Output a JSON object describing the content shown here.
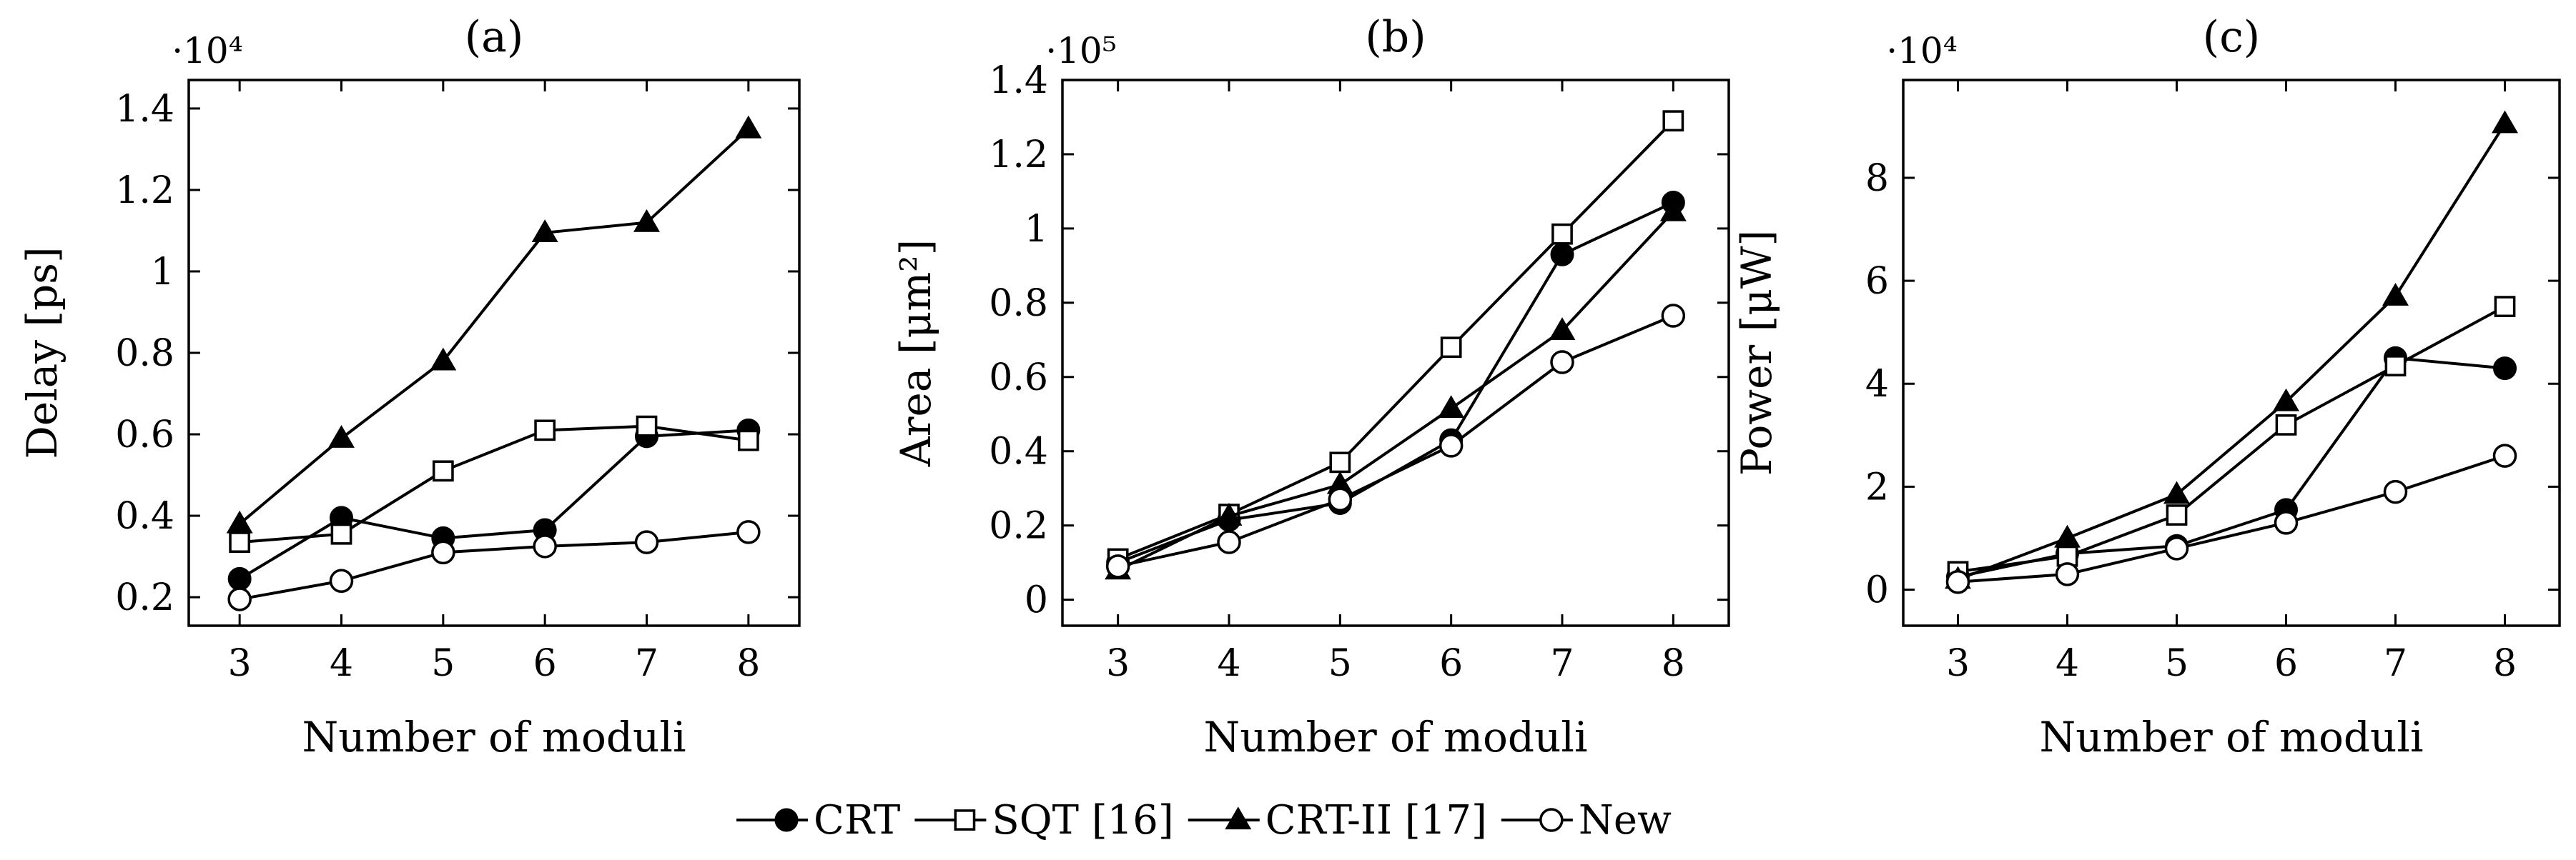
{
  "legend": [
    {
      "name": "CRT",
      "marker": "filled-circle"
    },
    {
      "name": "SQT [16]",
      "marker": "open-square"
    },
    {
      "name": "CRT-II [17]",
      "marker": "filled-triangle"
    },
    {
      "name": "New",
      "marker": "open-circle"
    }
  ],
  "chart_data": [
    {
      "type": "line",
      "title": "(a)",
      "xlabel": "Number of moduli",
      "ylabel": "Delay [ps]",
      "multiplier": "·10⁴",
      "x": [
        3,
        4,
        5,
        6,
        7,
        8
      ],
      "xlim": [
        2.5,
        8.5
      ],
      "ylim": [
        0.13,
        1.47
      ],
      "xticks": [
        "3",
        "4",
        "5",
        "6",
        "7",
        "8"
      ],
      "yticks": [
        0.2,
        0.4,
        0.6,
        0.8,
        1.0,
        1.2,
        1.4
      ],
      "ytick_labels": [
        "0.2",
        "0.4",
        "0.6",
        "0.8",
        "1",
        "1.2",
        "1.4"
      ],
      "series": [
        {
          "name": "CRT",
          "values": [
            0.245,
            0.395,
            0.345,
            0.365,
            0.595,
            0.61
          ]
        },
        {
          "name": "SQT [16]",
          "values": [
            0.335,
            0.355,
            0.51,
            0.61,
            0.62,
            0.585
          ]
        },
        {
          "name": "CRT-II [17]",
          "values": [
            0.38,
            0.59,
            0.78,
            1.095,
            1.12,
            1.35
          ]
        },
        {
          "name": "New",
          "values": [
            0.195,
            0.24,
            0.31,
            0.325,
            0.335,
            0.36
          ]
        }
      ]
    },
    {
      "type": "line",
      "title": "(b)",
      "xlabel": "Number of moduli",
      "ylabel": "Area [μm²]",
      "multiplier": "·10⁵",
      "x": [
        3,
        4,
        5,
        6,
        7,
        8
      ],
      "xlim": [
        2.5,
        8.5
      ],
      "ylim": [
        -0.07,
        1.4
      ],
      "xticks": [
        "3",
        "4",
        "5",
        "6",
        "7",
        "8"
      ],
      "yticks": [
        0,
        0.2,
        0.4,
        0.6,
        0.8,
        1.0,
        1.2,
        1.4
      ],
      "ytick_labels": [
        "0",
        "0.2",
        "0.4",
        "0.6",
        "0.8",
        "1",
        "1.2",
        "1.4"
      ],
      "series": [
        {
          "name": "CRT",
          "values": [
            0.1,
            0.215,
            0.26,
            0.43,
            0.93,
            1.07
          ]
        },
        {
          "name": "SQT [16]",
          "values": [
            0.11,
            0.23,
            0.37,
            0.68,
            0.985,
            1.29
          ]
        },
        {
          "name": "CRT-II [17]",
          "values": [
            0.08,
            0.225,
            0.31,
            0.515,
            0.725,
            1.045
          ]
        },
        {
          "name": "New",
          "values": [
            0.09,
            0.155,
            0.27,
            0.415,
            0.64,
            0.765
          ]
        }
      ]
    },
    {
      "type": "line",
      "title": "(c)",
      "xlabel": "Number of moduli",
      "ylabel": "Power [μW]",
      "multiplier": "·10⁴",
      "x": [
        3,
        4,
        5,
        6,
        7,
        8
      ],
      "xlim": [
        2.5,
        8.5
      ],
      "ylim": [
        -0.7,
        9.9
      ],
      "xticks": [
        "3",
        "4",
        "5",
        "6",
        "7",
        "8"
      ],
      "yticks": [
        0,
        2,
        4,
        6,
        8
      ],
      "ytick_labels": [
        "0",
        "2",
        "4",
        "6",
        "8"
      ],
      "series": [
        {
          "name": "CRT",
          "values": [
            0.25,
            0.7,
            0.85,
            1.55,
            4.5,
            4.3
          ]
        },
        {
          "name": "SQT [16]",
          "values": [
            0.35,
            0.65,
            1.45,
            3.2,
            4.35,
            5.5
          ]
        },
        {
          "name": "CRT-II [17]",
          "values": [
            0.2,
            1.0,
            1.85,
            3.65,
            5.7,
            9.05
          ]
        },
        {
          "name": "New",
          "values": [
            0.15,
            0.3,
            0.8,
            1.3,
            1.9,
            2.6
          ]
        }
      ]
    }
  ]
}
